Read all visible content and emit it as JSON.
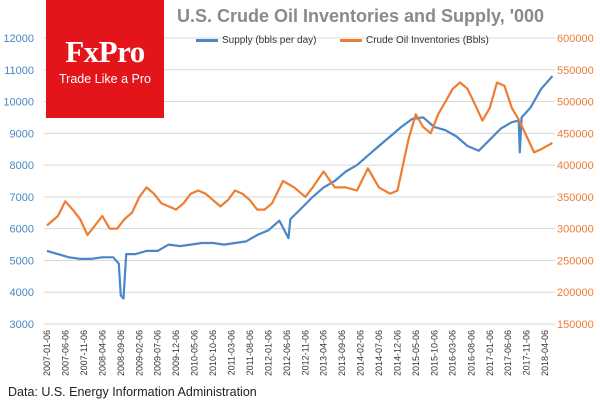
{
  "title": "U.S. Crude Oil Inventories and Supply, '000",
  "source": "Data: U.S. Energy Information Administration",
  "logo": {
    "word": "FxPro",
    "tagline": "Trade Like a Pro",
    "color": "#e3151a"
  },
  "chart_data": {
    "type": "line",
    "title": "U.S. Crude Oil Inventories and Supply, '000",
    "x_tick_labels": [
      "2007-01-06",
      "2007-06-06",
      "2007-11-06",
      "2008-04-06",
      "2008-09-06",
      "2009-02-06",
      "2009-07-06",
      "2009-12-06",
      "2010-05-06",
      "2010-10-06",
      "2011-03-06",
      "2011-08-06",
      "2012-01-06",
      "2012-06-06",
      "2012-11-06",
      "2013-04-06",
      "2013-09-06",
      "2014-02-06",
      "2014-07-06",
      "2014-12-06",
      "2015-05-06",
      "2015-10-06",
      "2016-03-06",
      "2016-08-06",
      "2017-01-06",
      "2017-06-06",
      "2017-11-06",
      "2018-04-06"
    ],
    "left_axis": {
      "ticks": [
        3000,
        4000,
        5000,
        6000,
        7000,
        8000,
        9000,
        10000,
        11000,
        12000
      ],
      "range": [
        3000,
        12000
      ],
      "color": "#4a86c8"
    },
    "right_axis": {
      "ticks": [
        150000,
        200000,
        250000,
        300000,
        350000,
        400000,
        450000,
        500000,
        550000,
        600000
      ],
      "range": [
        150000,
        600000
      ],
      "color": "#ed7d31"
    },
    "grid": "horizontal",
    "legend_position": "top",
    "series": [
      {
        "name": "Supply (bbls per day)",
        "axis": "left",
        "color": "#4a86c8",
        "points": [
          [
            "2007-01-06",
            5300
          ],
          [
            "2007-04-06",
            5200
          ],
          [
            "2007-07-06",
            5100
          ],
          [
            "2007-10-06",
            5050
          ],
          [
            "2008-01-06",
            5050
          ],
          [
            "2008-04-06",
            5100
          ],
          [
            "2008-07-06",
            5100
          ],
          [
            "2008-08-20",
            4900
          ],
          [
            "2008-09-06",
            3900
          ],
          [
            "2008-09-28",
            3800
          ],
          [
            "2008-10-20",
            5200
          ],
          [
            "2009-01-06",
            5200
          ],
          [
            "2009-04-06",
            5300
          ],
          [
            "2009-07-06",
            5300
          ],
          [
            "2009-10-06",
            5500
          ],
          [
            "2010-01-06",
            5450
          ],
          [
            "2010-04-06",
            5500
          ],
          [
            "2010-07-06",
            5550
          ],
          [
            "2010-10-06",
            5550
          ],
          [
            "2011-01-06",
            5500
          ],
          [
            "2011-04-06",
            5550
          ],
          [
            "2011-07-06",
            5600
          ],
          [
            "2011-10-06",
            5800
          ],
          [
            "2012-01-06",
            5950
          ],
          [
            "2012-04-06",
            6250
          ],
          [
            "2012-06-20",
            5700
          ],
          [
            "2012-07-06",
            6300
          ],
          [
            "2012-10-06",
            6650
          ],
          [
            "2013-01-06",
            7000
          ],
          [
            "2013-04-06",
            7300
          ],
          [
            "2013-07-06",
            7500
          ],
          [
            "2013-10-06",
            7800
          ],
          [
            "2014-01-06",
            8000
          ],
          [
            "2014-04-06",
            8300
          ],
          [
            "2014-07-06",
            8600
          ],
          [
            "2014-10-06",
            8900
          ],
          [
            "2015-01-06",
            9200
          ],
          [
            "2015-04-06",
            9450
          ],
          [
            "2015-07-06",
            9500
          ],
          [
            "2015-10-06",
            9200
          ],
          [
            "2016-01-06",
            9100
          ],
          [
            "2016-04-06",
            8900
          ],
          [
            "2016-07-06",
            8600
          ],
          [
            "2016-10-06",
            8450
          ],
          [
            "2017-01-06",
            8800
          ],
          [
            "2017-04-06",
            9150
          ],
          [
            "2017-07-06",
            9350
          ],
          [
            "2017-09-01",
            9400
          ],
          [
            "2017-09-10",
            8400
          ],
          [
            "2017-09-25",
            9500
          ],
          [
            "2017-12-06",
            9800
          ],
          [
            "2018-03-06",
            10400
          ],
          [
            "2018-06-06",
            10800
          ]
        ]
      },
      {
        "name": "Crude Oil Inventories (Bbls)",
        "axis": "right",
        "color": "#ed7d31",
        "points": [
          [
            "2007-01-06",
            305000
          ],
          [
            "2007-04-06",
            320000
          ],
          [
            "2007-06-06",
            343000
          ],
          [
            "2007-08-06",
            330000
          ],
          [
            "2007-10-06",
            315000
          ],
          [
            "2007-12-06",
            290000
          ],
          [
            "2008-02-06",
            305000
          ],
          [
            "2008-04-06",
            320000
          ],
          [
            "2008-06-06",
            300000
          ],
          [
            "2008-08-06",
            300000
          ],
          [
            "2008-10-06",
            315000
          ],
          [
            "2008-12-06",
            325000
          ],
          [
            "2009-02-06",
            350000
          ],
          [
            "2009-04-06",
            365000
          ],
          [
            "2009-06-06",
            355000
          ],
          [
            "2009-08-06",
            340000
          ],
          [
            "2009-10-06",
            335000
          ],
          [
            "2009-12-06",
            330000
          ],
          [
            "2010-02-06",
            340000
          ],
          [
            "2010-04-06",
            355000
          ],
          [
            "2010-06-06",
            360000
          ],
          [
            "2010-08-06",
            355000
          ],
          [
            "2010-10-06",
            345000
          ],
          [
            "2010-12-06",
            335000
          ],
          [
            "2011-02-06",
            345000
          ],
          [
            "2011-04-06",
            360000
          ],
          [
            "2011-06-06",
            355000
          ],
          [
            "2011-08-06",
            345000
          ],
          [
            "2011-10-06",
            330000
          ],
          [
            "2011-12-06",
            330000
          ],
          [
            "2012-02-06",
            340000
          ],
          [
            "2012-05-06",
            375000
          ],
          [
            "2012-08-06",
            365000
          ],
          [
            "2012-11-06",
            350000
          ],
          [
            "2013-01-06",
            365000
          ],
          [
            "2013-04-06",
            390000
          ],
          [
            "2013-07-06",
            365000
          ],
          [
            "2013-10-06",
            365000
          ],
          [
            "2014-01-06",
            360000
          ],
          [
            "2014-04-06",
            395000
          ],
          [
            "2014-07-06",
            365000
          ],
          [
            "2014-10-06",
            355000
          ],
          [
            "2014-12-06",
            360000
          ],
          [
            "2015-03-06",
            440000
          ],
          [
            "2015-05-06",
            480000
          ],
          [
            "2015-07-06",
            460000
          ],
          [
            "2015-09-06",
            450000
          ],
          [
            "2015-11-06",
            480000
          ],
          [
            "2016-01-06",
            500000
          ],
          [
            "2016-03-06",
            520000
          ],
          [
            "2016-05-06",
            530000
          ],
          [
            "2016-07-06",
            520000
          ],
          [
            "2016-09-06",
            495000
          ],
          [
            "2016-11-06",
            470000
          ],
          [
            "2017-01-06",
            490000
          ],
          [
            "2017-03-06",
            530000
          ],
          [
            "2017-05-06",
            525000
          ],
          [
            "2017-07-06",
            490000
          ],
          [
            "2017-09-06",
            470000
          ],
          [
            "2017-11-06",
            445000
          ],
          [
            "2018-01-06",
            420000
          ],
          [
            "2018-03-06",
            425000
          ],
          [
            "2018-06-06",
            435000
          ]
        ]
      }
    ]
  }
}
